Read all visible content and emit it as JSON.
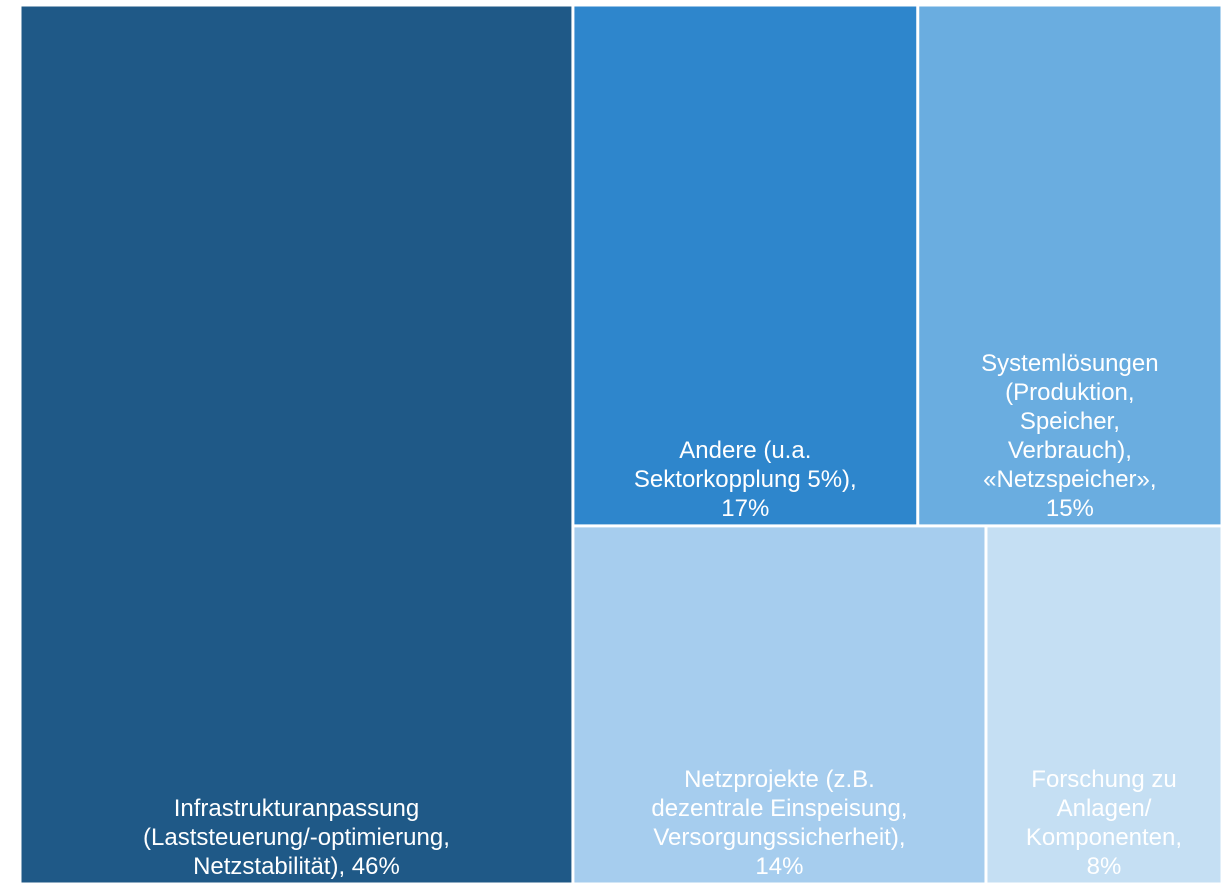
{
  "chart_data": {
    "type": "treemap",
    "categories": [
      [
        "Infrastrukturanpassung",
        "(Laststeuerung/-optimierung,",
        "Netzstabilität), 46%"
      ],
      [
        "Andere (u.a.",
        "Sektorkopplung 5%),",
        "17%"
      ],
      [
        "Systemlösungen",
        "(Produktion,",
        "Speicher,",
        "Verbrauch),",
        "«Netzspeicher»,",
        "15%"
      ],
      [
        "Netzprojekte (z.B.",
        "dezentrale Einspeisung,",
        "Versorgungssicherheit),",
        "14%"
      ],
      [
        "Forschung zu",
        "Anlagen/",
        "Komponenten,",
        "8%"
      ]
    ],
    "values": [
      46,
      17,
      15,
      14,
      8
    ],
    "colors": [
      "#1f5987",
      "#2e86cc",
      "#6aade0",
      "#a6cdee",
      "#c5dff3"
    ]
  }
}
